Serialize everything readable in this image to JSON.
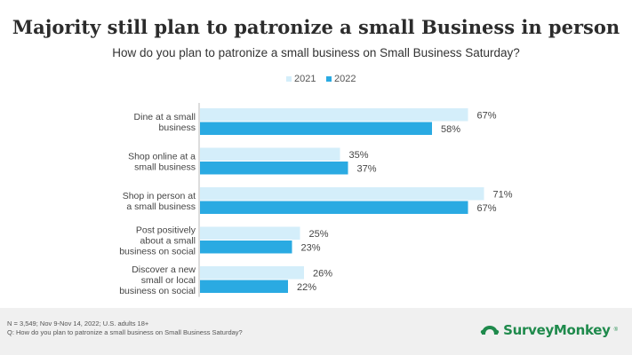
{
  "chart_data": {
    "type": "bar",
    "orientation": "horizontal",
    "title": "Majority still plan to patronize a small Business in person",
    "subtitle": "How do you plan to patronize a small business on Small Business Saturday?",
    "categories": [
      [
        "Dine at a small",
        "business"
      ],
      [
        "Shop online at a",
        "small business"
      ],
      [
        "Shop in person at",
        "a small business"
      ],
      [
        "Post positively",
        "about a small",
        "business on social"
      ],
      [
        "Discover a new",
        "small or local",
        "business on social"
      ]
    ],
    "series": [
      {
        "name": "2021",
        "color": "#d4eefa",
        "values": [
          67,
          35,
          71,
          25,
          26
        ],
        "labels": [
          "67%",
          "35%",
          "71%",
          "25%",
          "26%"
        ]
      },
      {
        "name": "2022",
        "color": "#2aaae2",
        "values": [
          58,
          37,
          67,
          23,
          22
        ],
        "labels": [
          "58%",
          "37%",
          "67%",
          "23%",
          "22%"
        ]
      }
    ],
    "xlim": [
      0,
      100
    ],
    "legend_position": "top-center"
  },
  "footer": {
    "note_line1": "N = 3,549; Nov 9-Nov 14, 2022; U.S. adults 18+",
    "note_line2": "Q: How do you plan to patronize a small business on Small Business Saturday?"
  },
  "brand": {
    "name": "SurveyMonkey",
    "reg": "®",
    "color": "#1f8a4c"
  }
}
